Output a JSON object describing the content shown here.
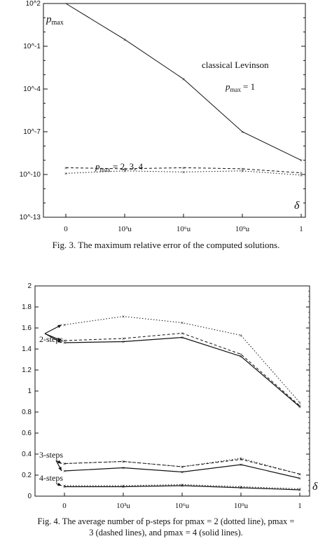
{
  "chart_data": [
    {
      "type": "line",
      "yscale": "log",
      "ylim": [
        1e-13,
        100
      ],
      "yticks": [
        "10^2",
        "10^-1",
        "10^-4",
        "10^-7",
        "10^-10",
        "10^-13"
      ],
      "categories": [
        "0",
        "10³u",
        "10⁶u",
        "10⁹u",
        "1"
      ],
      "series": [
        {
          "name": "classical Levinson",
          "style": "solid",
          "values": [
            100,
            0.3,
            0.0005,
            1e-07,
            1e-09
          ]
        },
        {
          "style": "dashed",
          "values": [
            3e-10,
            2.5e-10,
            3e-10,
            2.5e-10,
            1.3e-10
          ]
        },
        {
          "style": "dotted",
          "values": [
            1.2e-10,
            1.8e-10,
            1.5e-10,
            1.8e-10,
            9e-11
          ]
        }
      ],
      "annotations": {
        "pmax": "p",
        "pmax_sub": "max",
        "method": "classical Levinson",
        "pmax_eq1": "= 1",
        "pmax_eq234": "= 2, 3, 4",
        "delta": "δ"
      },
      "caption": "Fig. 3.  The maximum relative error of the computed solutions."
    },
    {
      "type": "line",
      "ylim": [
        0,
        2
      ],
      "yticks": [
        "0",
        "0.2",
        "0.4",
        "0.6",
        "0.8",
        "1",
        "1.2",
        "1.4",
        "1.6",
        "1.8",
        "2"
      ],
      "categories": [
        "0",
        "10³u",
        "10⁶u",
        "10⁹u",
        "1"
      ],
      "series": [
        {
          "group": "2-steps",
          "style": "dotted",
          "values": [
            1.63,
            1.71,
            1.65,
            1.53,
            0.89
          ]
        },
        {
          "group": "2-steps",
          "style": "dashed",
          "values": [
            1.48,
            1.5,
            1.55,
            1.35,
            0.86
          ]
        },
        {
          "group": "2-steps",
          "style": "solid",
          "values": [
            1.46,
            1.47,
            1.51,
            1.33,
            0.85
          ]
        },
        {
          "group": "3-steps",
          "style": "dotted",
          "values": [
            0.31,
            0.33,
            0.28,
            0.36,
            0.21
          ]
        },
        {
          "group": "3-steps",
          "style": "dashed",
          "values": [
            0.31,
            0.33,
            0.28,
            0.35,
            0.21
          ]
        },
        {
          "group": "3-steps",
          "style": "solid",
          "values": [
            0.24,
            0.27,
            0.23,
            0.3,
            0.17
          ]
        },
        {
          "group": "4-steps",
          "style": "dotted",
          "values": [
            0.1,
            0.1,
            0.11,
            0.09,
            0.07
          ]
        },
        {
          "group": "4-steps",
          "style": "solid",
          "values": [
            0.09,
            0.09,
            0.1,
            0.08,
            0.06
          ]
        }
      ],
      "annotations": {
        "steps2": "2-steps",
        "steps3": "3-steps",
        "steps4": "4-steps",
        "delta": "δ"
      },
      "caption_lines": [
        "Fig. 4.  The average number of p-steps for pmax = 2 (dotted line), pmax =",
        "3 (dashed lines), and pmax = 4 (solid lines)."
      ]
    }
  ]
}
